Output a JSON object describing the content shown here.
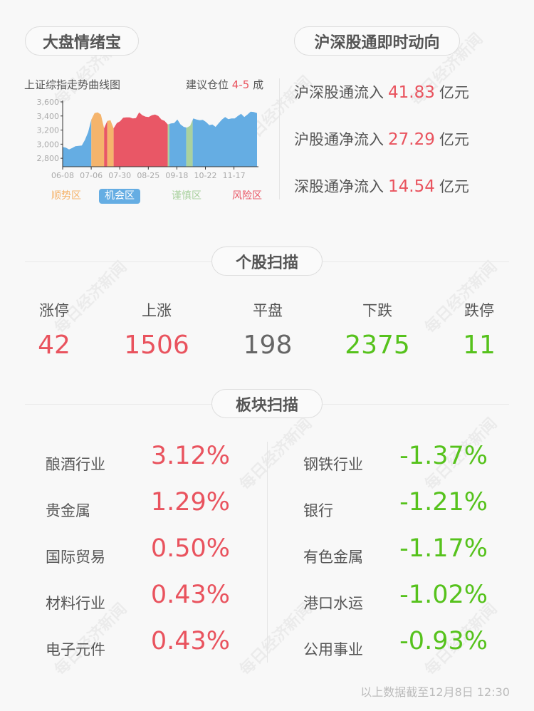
{
  "watermark": "每日经济新闻",
  "sentiment": {
    "title": "大盘情绪宝",
    "chart_label": "上证综指走势曲线图",
    "advice_prefix": "建议仓位",
    "advice_value": "4-5",
    "advice_suffix": "成",
    "legend": [
      {
        "label": "顺势区",
        "color": "#f5b46c"
      },
      {
        "label": "机会区",
        "color": "#65ade3",
        "active": true
      },
      {
        "label": "谨慎区",
        "color": "#a9d19e"
      },
      {
        "label": "风险区",
        "color": "#e95766"
      }
    ]
  },
  "chart_data": {
    "type": "area",
    "ylim": [
      2680,
      3600
    ],
    "yticks": [
      "3,600",
      "3,400",
      "3,200",
      "3,000",
      "2,800"
    ],
    "ytick_values": [
      3600,
      3400,
      3200,
      3000,
      2800
    ],
    "xticks": [
      "06-08",
      "07-06",
      "07-30",
      "08-25",
      "09-18",
      "10-22",
      "11-17"
    ],
    "values": [
      2960,
      2950,
      2925,
      2945,
      2970,
      2975,
      2980,
      3060,
      3170,
      3350,
      3440,
      3450,
      3420,
      3225,
      3330,
      3340,
      3225,
      3300,
      3325,
      3375,
      3380,
      3380,
      3365,
      3370,
      3450,
      3410,
      3390,
      3385,
      3410,
      3420,
      3400,
      3350,
      3330,
      3280,
      3295,
      3300,
      3350,
      3280,
      3245,
      3235,
      3260,
      3365,
      3350,
      3340,
      3345,
      3315,
      3270,
      3280,
      3245,
      3300,
      3350,
      3385,
      3355,
      3365,
      3365,
      3400,
      3430,
      3385,
      3420,
      3460,
      3455,
      3440
    ],
    "zones": [
      {
        "from": 0,
        "to": 9,
        "zone": "机会区"
      },
      {
        "from": 9,
        "to": 13,
        "zone": "顺势区"
      },
      {
        "from": 13,
        "to": 14,
        "zone": "风险区"
      },
      {
        "from": 14,
        "to": 16,
        "zone": "顺势区"
      },
      {
        "from": 16,
        "to": 33,
        "zone": "风险区"
      },
      {
        "from": 33,
        "to": 33.5,
        "zone": "谨慎区"
      },
      {
        "from": 33.5,
        "to": 38.8,
        "zone": "机会区"
      },
      {
        "from": 38.8,
        "to": 40.8,
        "zone": "谨慎区"
      },
      {
        "from": 40.8,
        "to": 61,
        "zone": "机会区"
      }
    ]
  },
  "northbound": {
    "title": "沪深股通即时动向",
    "unit": "亿元",
    "rows": [
      {
        "label": "沪深股通流入",
        "value": "41.83"
      },
      {
        "label": "沪股通净流入",
        "value": "27.29"
      },
      {
        "label": "深股通净流入",
        "value": "14.54"
      }
    ]
  },
  "stocks": {
    "title": "个股扫描",
    "items": [
      {
        "label": "涨停",
        "value": "42",
        "color": "red"
      },
      {
        "label": "上涨",
        "value": "1506",
        "color": "red"
      },
      {
        "label": "平盘",
        "value": "198",
        "color": "gray"
      },
      {
        "label": "下跌",
        "value": "2375",
        "color": "green"
      },
      {
        "label": "跌停",
        "value": "11",
        "color": "green"
      }
    ]
  },
  "sectors": {
    "title": "板块扫描",
    "gainers": [
      {
        "name": "酿酒行业",
        "value": "3.12%"
      },
      {
        "name": "贵金属",
        "value": "1.29%"
      },
      {
        "name": "国际贸易",
        "value": "0.50%"
      },
      {
        "name": "材料行业",
        "value": "0.43%"
      },
      {
        "name": "电子元件",
        "value": "0.43%"
      }
    ],
    "losers": [
      {
        "name": "钢铁行业",
        "value": "-1.37%"
      },
      {
        "name": "银行",
        "value": "-1.21%"
      },
      {
        "name": "有色金属",
        "value": "-1.17%"
      },
      {
        "name": "港口水运",
        "value": "-1.02%"
      },
      {
        "name": "公用事业",
        "value": "-0.93%"
      }
    ]
  },
  "footer": "以上数据截至12月8日 12:30"
}
